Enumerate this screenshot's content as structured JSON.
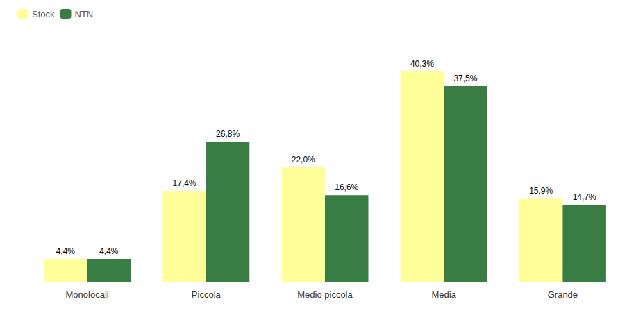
{
  "chart_data": {
    "type": "bar",
    "categories": [
      "Monolocali",
      "Piccola",
      "Medio piccola",
      "Media",
      "Grande"
    ],
    "series": [
      {
        "name": "Stock",
        "color": "#FFFF99",
        "values": [
          4.4,
          17.4,
          22.0,
          40.3,
          15.9
        ],
        "value_labels": [
          "4,4%",
          "17,4%",
          "22,0%",
          "40,3%",
          "15,9%"
        ]
      },
      {
        "name": "NTN",
        "color": "#3A7D44",
        "values": [
          4.4,
          26.8,
          16.6,
          37.5,
          14.7
        ],
        "value_labels": [
          "4,4%",
          "26,8%",
          "16,6%",
          "37,5%",
          "14,7%"
        ]
      }
    ],
    "ylim": [
      0,
      46
    ],
    "data_labels": true,
    "tick_labels": "x",
    "grid": false,
    "legend": "upper left"
  }
}
